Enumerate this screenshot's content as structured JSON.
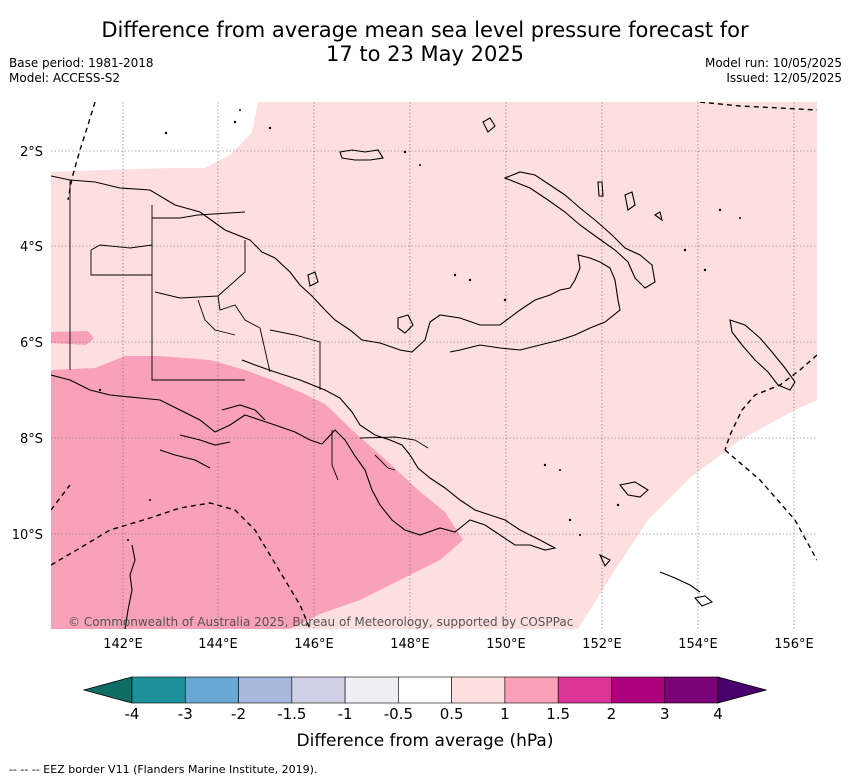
{
  "title": {
    "line1": "Difference from average mean sea level pressure forecast for",
    "line2": "17 to 23 May 2025"
  },
  "meta_left": {
    "base_period": "Base period: 1981-2018",
    "model": "Model: ACCESS-S2"
  },
  "meta_right": {
    "model_run": "Model run: 10/05/2025",
    "issued": "Issued: 12/05/2025"
  },
  "map": {
    "lat_labels": [
      "2°S",
      "4°S",
      "6°S",
      "8°S",
      "10°S"
    ],
    "lon_labels": [
      "142°E",
      "144°E",
      "146°E",
      "148°E",
      "150°E",
      "152°E",
      "154°E",
      "156°E"
    ],
    "copyright": "© Commonwealth of Australia 2025, Bureau of Meteorology, supported by COSPPac",
    "fill_colors": {
      "anomaly_0_5_to_1": "#fddfdf",
      "anomaly_1_to_1_5": "#f9a1b9"
    }
  },
  "colorbar": {
    "labels": [
      "-4",
      "-3",
      "-2",
      "-1.5",
      "-1",
      "-0.5",
      "0.5",
      "1",
      "1.5",
      "2",
      "3",
      "4"
    ],
    "colors": [
      "#0e6d64",
      "#1c9199",
      "#6aa8d4",
      "#a7b9dc",
      "#cfd0e8",
      "#efeef2",
      "#ffffff",
      "#fddfdf",
      "#f9a1b9",
      "#dd3497",
      "#ae017e",
      "#7a0177",
      "#49006a"
    ],
    "title": "Difference from average (hPa)"
  },
  "footnote": "--  --  -- EEZ border V11 (Flanders Marine Institute, 2019)."
}
